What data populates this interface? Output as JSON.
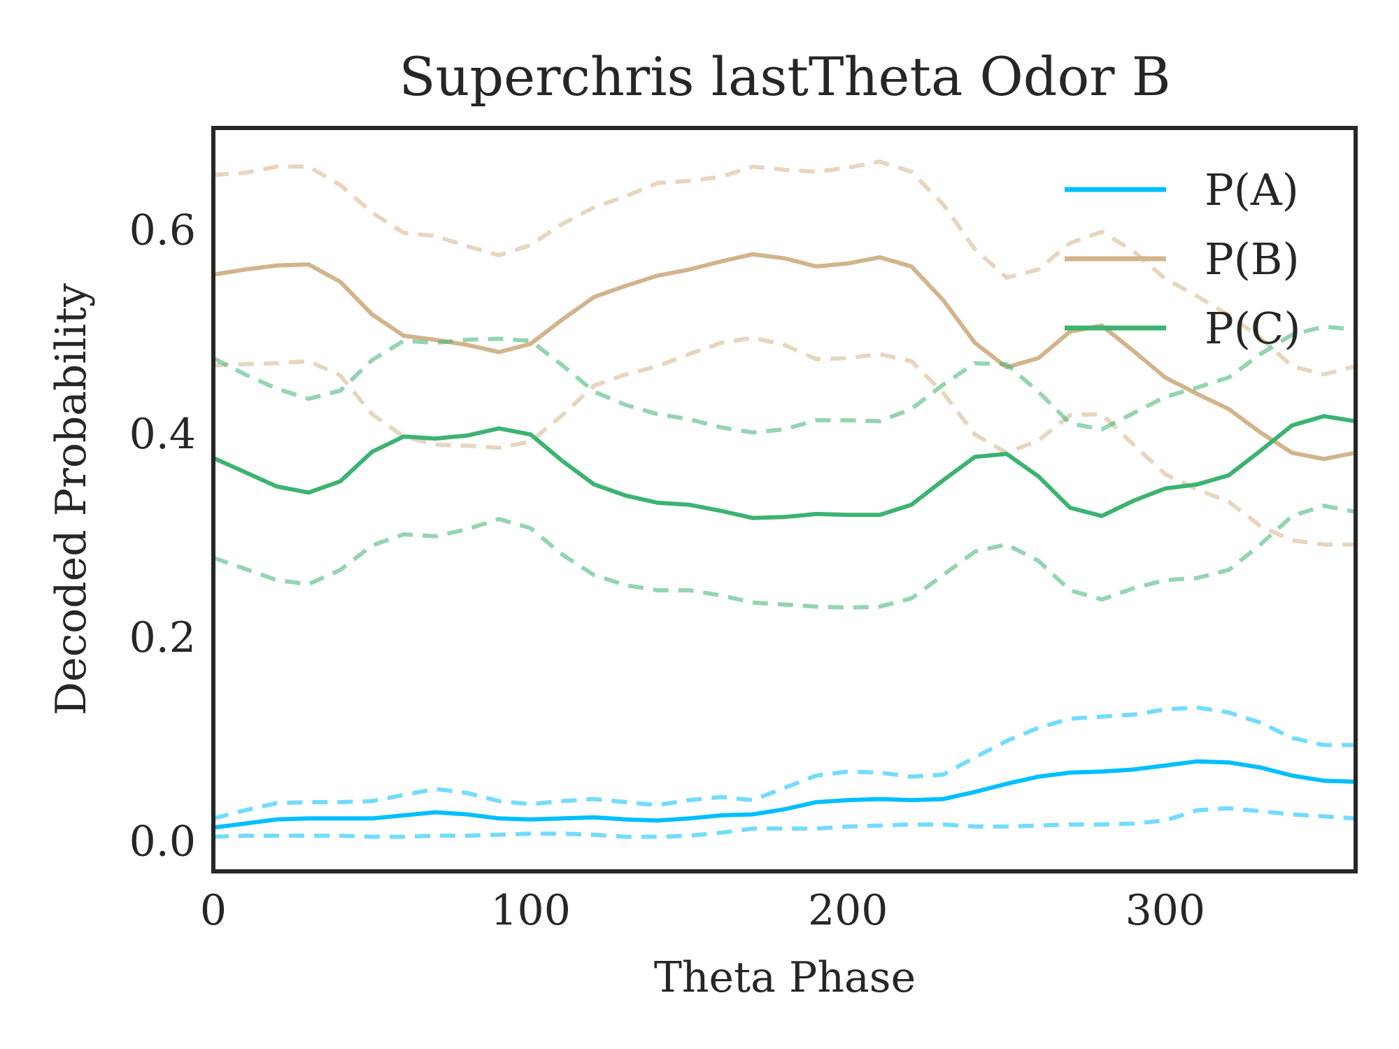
{
  "chart_data": {
    "type": "line",
    "title": "Superchris lastTheta Odor B",
    "xlabel": "Theta Phase",
    "ylabel": "Decoded Probability",
    "xlim": [
      0,
      360
    ],
    "ylim": [
      -0.03,
      0.7
    ],
    "xticks": [
      0,
      100,
      200,
      300
    ],
    "yticks": [
      0.0,
      0.2,
      0.4,
      0.6
    ],
    "xtick_labels": [
      "0",
      "100",
      "200",
      "300"
    ],
    "ytick_labels": [
      "0.0",
      "0.2",
      "0.4",
      "0.6"
    ],
    "grid": false,
    "legend_position": "top-right",
    "x": [
      0,
      10,
      20,
      30,
      40,
      50,
      60,
      70,
      80,
      90,
      100,
      110,
      120,
      130,
      140,
      150,
      160,
      170,
      180,
      190,
      200,
      210,
      220,
      230,
      240,
      250,
      260,
      270,
      280,
      290,
      300,
      310,
      320,
      330,
      340,
      350,
      360
    ],
    "series": [
      {
        "name": "P(A)",
        "color": "#00bfff",
        "mean": [
          0.013,
          0.017,
          0.021,
          0.022,
          0.022,
          0.022,
          0.025,
          0.028,
          0.026,
          0.022,
          0.021,
          0.022,
          0.023,
          0.021,
          0.02,
          0.022,
          0.025,
          0.026,
          0.031,
          0.038,
          0.04,
          0.041,
          0.04,
          0.041,
          0.048,
          0.056,
          0.063,
          0.067,
          0.068,
          0.07,
          0.074,
          0.078,
          0.077,
          0.072,
          0.064,
          0.059,
          0.058
        ],
        "upper": [
          0.022,
          0.03,
          0.037,
          0.038,
          0.038,
          0.039,
          0.045,
          0.051,
          0.047,
          0.039,
          0.036,
          0.039,
          0.041,
          0.038,
          0.035,
          0.04,
          0.043,
          0.04,
          0.052,
          0.064,
          0.068,
          0.067,
          0.063,
          0.065,
          0.082,
          0.098,
          0.111,
          0.12,
          0.122,
          0.124,
          0.129,
          0.131,
          0.126,
          0.116,
          0.101,
          0.094,
          0.094
        ],
        "lower": [
          0.004,
          0.005,
          0.005,
          0.005,
          0.005,
          0.004,
          0.004,
          0.005,
          0.005,
          0.006,
          0.007,
          0.007,
          0.006,
          0.004,
          0.004,
          0.005,
          0.008,
          0.012,
          0.012,
          0.012,
          0.014,
          0.015,
          0.016,
          0.016,
          0.014,
          0.014,
          0.015,
          0.016,
          0.016,
          0.017,
          0.02,
          0.03,
          0.032,
          0.029,
          0.026,
          0.024,
          0.022
        ]
      },
      {
        "name": "P(B)",
        "color": "#d2b48c",
        "mean": [
          0.556,
          0.561,
          0.565,
          0.566,
          0.549,
          0.517,
          0.496,
          0.492,
          0.487,
          0.48,
          0.488,
          0.512,
          0.534,
          0.545,
          0.555,
          0.561,
          0.569,
          0.576,
          0.572,
          0.564,
          0.567,
          0.573,
          0.564,
          0.531,
          0.489,
          0.465,
          0.474,
          0.5,
          0.506,
          0.481,
          0.455,
          0.439,
          0.424,
          0.401,
          0.381,
          0.375,
          0.381
        ],
        "upper": [
          0.654,
          0.656,
          0.662,
          0.662,
          0.644,
          0.617,
          0.597,
          0.594,
          0.584,
          0.575,
          0.585,
          0.606,
          0.622,
          0.633,
          0.646,
          0.648,
          0.652,
          0.662,
          0.659,
          0.657,
          0.661,
          0.667,
          0.657,
          0.625,
          0.581,
          0.553,
          0.561,
          0.587,
          0.598,
          0.579,
          0.552,
          0.535,
          0.516,
          0.494,
          0.466,
          0.458,
          0.466
        ],
        "lower": [
          0.467,
          0.468,
          0.469,
          0.471,
          0.457,
          0.419,
          0.397,
          0.389,
          0.388,
          0.386,
          0.392,
          0.418,
          0.447,
          0.458,
          0.466,
          0.478,
          0.489,
          0.494,
          0.487,
          0.473,
          0.474,
          0.478,
          0.471,
          0.44,
          0.399,
          0.381,
          0.393,
          0.418,
          0.419,
          0.389,
          0.36,
          0.345,
          0.333,
          0.309,
          0.295,
          0.291,
          0.291
        ]
      },
      {
        "name": "P(C)",
        "color": "#3cb371",
        "mean": [
          0.376,
          0.362,
          0.348,
          0.342,
          0.353,
          0.382,
          0.397,
          0.395,
          0.398,
          0.405,
          0.399,
          0.373,
          0.35,
          0.339,
          0.332,
          0.33,
          0.324,
          0.317,
          0.318,
          0.321,
          0.32,
          0.32,
          0.33,
          0.354,
          0.377,
          0.38,
          0.358,
          0.327,
          0.319,
          0.334,
          0.346,
          0.35,
          0.359,
          0.383,
          0.408,
          0.417,
          0.412
        ],
        "upper": [
          0.474,
          0.458,
          0.444,
          0.434,
          0.442,
          0.472,
          0.491,
          0.489,
          0.492,
          0.493,
          0.491,
          0.467,
          0.441,
          0.428,
          0.419,
          0.414,
          0.406,
          0.401,
          0.404,
          0.413,
          0.413,
          0.412,
          0.424,
          0.448,
          0.469,
          0.468,
          0.441,
          0.41,
          0.404,
          0.42,
          0.436,
          0.445,
          0.455,
          0.478,
          0.497,
          0.505,
          0.502
        ],
        "lower": [
          0.278,
          0.267,
          0.256,
          0.252,
          0.266,
          0.29,
          0.301,
          0.299,
          0.306,
          0.316,
          0.307,
          0.281,
          0.261,
          0.251,
          0.246,
          0.246,
          0.241,
          0.234,
          0.232,
          0.23,
          0.229,
          0.23,
          0.238,
          0.261,
          0.284,
          0.291,
          0.275,
          0.246,
          0.237,
          0.248,
          0.256,
          0.258,
          0.266,
          0.291,
          0.319,
          0.329,
          0.323
        ]
      }
    ]
  }
}
